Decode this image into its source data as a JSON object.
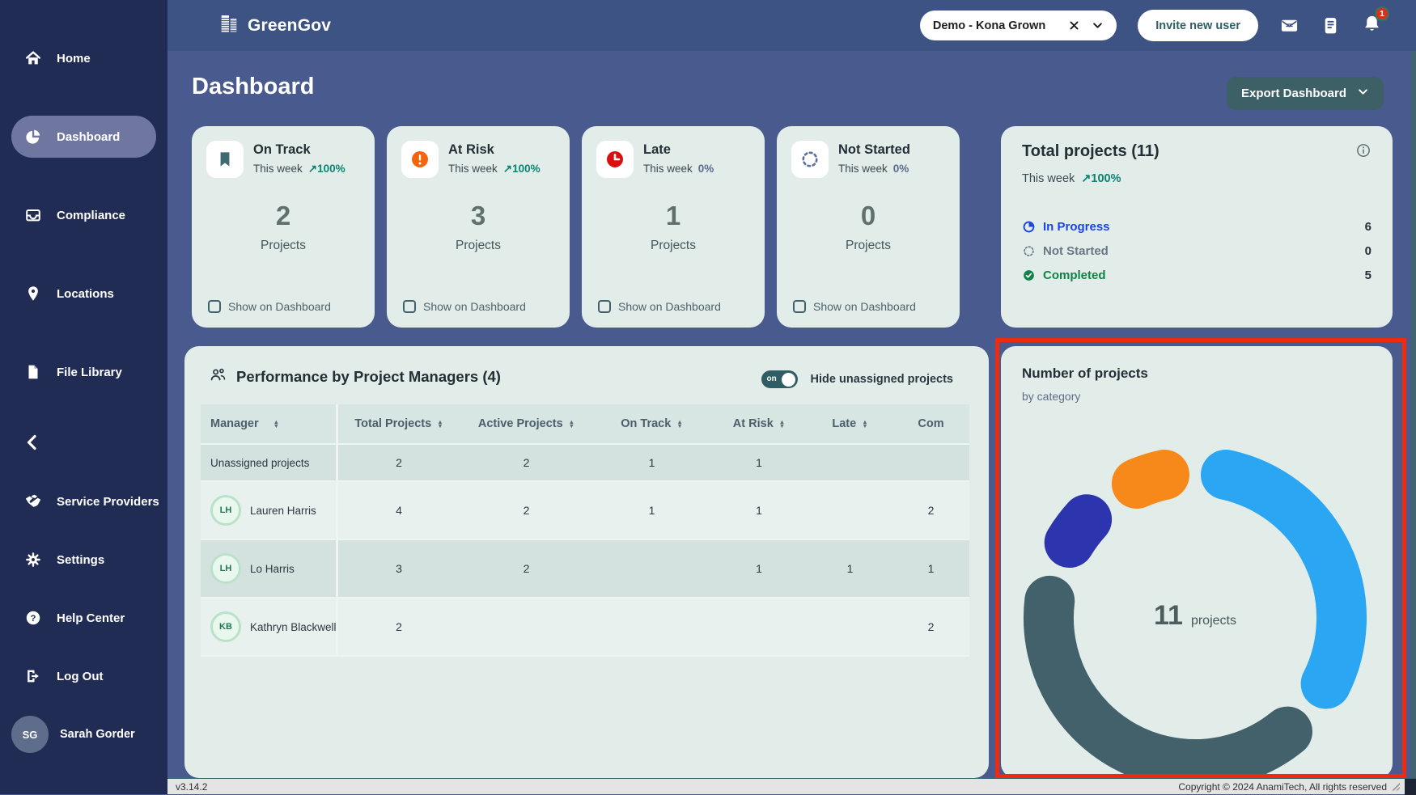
{
  "header": {
    "logo_text": "GreenGov",
    "org_selector_value": "Demo - Kona Grown",
    "invite_label": "Invite new user",
    "notification_count": "1"
  },
  "sidebar": {
    "items_top": [
      {
        "id": "home",
        "label": "Home",
        "icon": "home-icon",
        "active": false
      },
      {
        "id": "dashboard",
        "label": "Dashboard",
        "icon": "pie-chart-icon",
        "active": true
      },
      {
        "id": "compliance",
        "label": "Compliance",
        "icon": "inbox-icon",
        "active": false
      },
      {
        "id": "locations",
        "label": "Locations",
        "icon": "map-pin-icon",
        "active": false
      },
      {
        "id": "file-library",
        "label": "File Library",
        "icon": "file-icon",
        "active": false
      }
    ],
    "items_bottom": [
      {
        "id": "service-providers",
        "label": "Service Providers",
        "icon": "handshake-icon",
        "active": false
      },
      {
        "id": "settings",
        "label": "Settings",
        "icon": "gear-icon",
        "active": false
      },
      {
        "id": "help-center",
        "label": "Help Center",
        "icon": "help-icon",
        "active": false
      },
      {
        "id": "log-out",
        "label": "Log Out",
        "icon": "logout-icon",
        "active": false
      }
    ],
    "user": {
      "initials": "SG",
      "name": "Sarah Gorder"
    }
  },
  "page": {
    "title": "Dashboard",
    "export_label": "Export Dashboard"
  },
  "stat_cards": [
    {
      "title": "On Track",
      "period": "This week",
      "trend": "↗100%",
      "trend_up": true,
      "value": "2",
      "unit": "Projects",
      "checkbox_label": "Show on Dashboard",
      "icon": "bookmark-icon",
      "icon_color": "#3e6b70"
    },
    {
      "title": "At Risk",
      "period": "This week",
      "trend": "↗100%",
      "trend_up": true,
      "value": "3",
      "unit": "Projects",
      "checkbox_label": "Show on Dashboard",
      "icon": "alert-icon",
      "icon_color": "#f3640c"
    },
    {
      "title": "Late",
      "period": "This week",
      "trend": "0%",
      "trend_up": false,
      "value": "1",
      "unit": "Projects",
      "checkbox_label": "Show on Dashboard",
      "icon": "clock-icon",
      "icon_color": "#da1010"
    },
    {
      "title": "Not Started",
      "period": "This week",
      "trend": "0%",
      "trend_up": false,
      "value": "0",
      "unit": "Projects",
      "checkbox_label": "Show on Dashboard",
      "icon": "dashed-circle-icon",
      "icon_color": "#5b6e9e"
    }
  ],
  "total_projects": {
    "title": "Total projects (11)",
    "period": "This week",
    "trend": "↗100%",
    "trend_up": true,
    "legend": [
      {
        "label": "In Progress",
        "value": "6",
        "color": "#1b45e0",
        "icon": "pie-icon"
      },
      {
        "label": "Not Started",
        "value": "0",
        "color": "#6a7684",
        "icon": "dashed-circle-icon"
      },
      {
        "label": "Completed",
        "value": "5",
        "color": "#118247",
        "icon": "check-circle-icon"
      }
    ]
  },
  "performance": {
    "title": "Performance by Project Managers (4)",
    "toggle_state": "on",
    "toggle_label": "Hide unassigned projects",
    "columns": [
      {
        "label": "Manager",
        "sort": true
      },
      {
        "label": "Total Projects",
        "sort": true
      },
      {
        "label": "Active Projects",
        "sort": true
      },
      {
        "label": "On Track",
        "sort": true
      },
      {
        "label": "At Risk",
        "sort": true
      },
      {
        "label": "Late",
        "sort": true
      },
      {
        "label": "Com",
        "sort": false
      }
    ],
    "rows": [
      {
        "name": "Unassigned projects",
        "initials": "",
        "values": [
          "2",
          "2",
          "1",
          "1",
          "",
          ""
        ]
      },
      {
        "name": "Lauren Harris",
        "initials": "LH",
        "values": [
          "4",
          "2",
          "1",
          "1",
          "",
          "2"
        ]
      },
      {
        "name": "Lo Harris",
        "initials": "LH",
        "values": [
          "3",
          "2",
          "",
          "1",
          "1",
          "1"
        ]
      },
      {
        "name": "Kathryn Blackwell",
        "initials": "KB",
        "values": [
          "2",
          "",
          "",
          "",
          "",
          "2"
        ]
      }
    ]
  },
  "chart_data": {
    "type": "pie",
    "variant": "donut",
    "title": "Number of projects",
    "subtitle": "by category",
    "center_value": "11",
    "center_label": "projects",
    "total": 11,
    "start_at_top": true,
    "clockwise": true,
    "segments": [
      {
        "label": "light-blue-category",
        "value": 4,
        "color": "#2aa6f2"
      },
      {
        "label": "dark-slate-category",
        "value": 5,
        "color": "#42616b"
      },
      {
        "label": "indigo-category",
        "value": 1,
        "color": "#2c34ae"
      },
      {
        "label": "orange-category",
        "value": 1,
        "color": "#f6891a"
      }
    ]
  },
  "footer": {
    "version": "v3.14.2",
    "copyright": "Copyright © 2024 AnamiTech, All rights reserved"
  },
  "colors": {
    "highlight_red": "#ee2b0e",
    "teal_accent": "#3d6067",
    "trend_up_green": "#0e8371",
    "sidebar_navy": "#212c55",
    "header_blue": "#3d5383"
  }
}
